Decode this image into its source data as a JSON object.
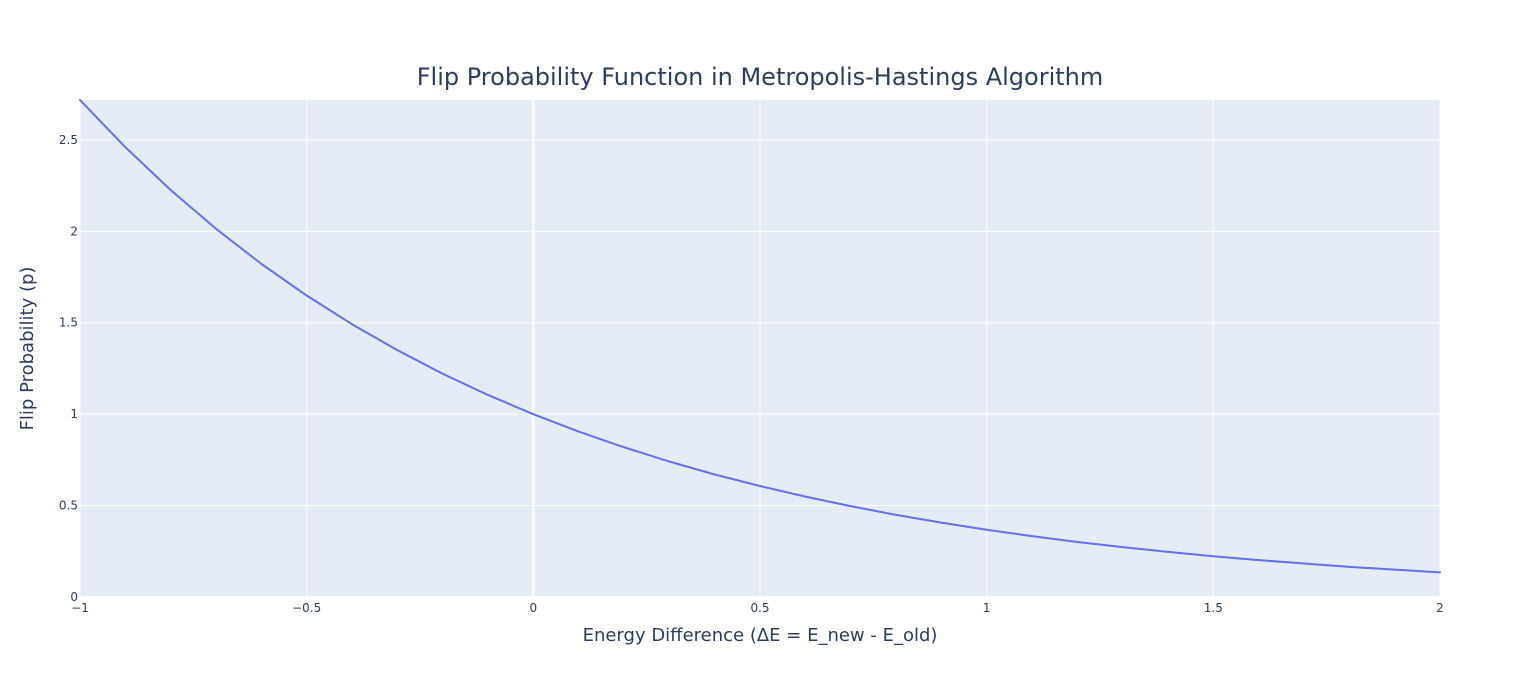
{
  "chart_data": {
    "type": "line",
    "title": "Flip Probability Function in Metropolis-Hastings Algorithm",
    "xlabel": "Energy Difference (ΔE = E_new - E_old)",
    "ylabel": "Flip Probability (p)",
    "xlim": [
      -1,
      2
    ],
    "ylim": [
      0,
      2.7183
    ],
    "x_ticks": [
      -1,
      -0.5,
      0,
      0.5,
      1,
      1.5,
      2
    ],
    "x_tick_labels": [
      "−1",
      "−0.5",
      "0",
      "0.5",
      "1",
      "1.5",
      "2"
    ],
    "y_ticks": [
      0,
      0.5,
      1,
      1.5,
      2,
      2.5
    ],
    "y_tick_labels": [
      "0",
      "0.5",
      "1",
      "1.5",
      "2",
      "2.5"
    ],
    "grid": true,
    "legend": false,
    "colors": {
      "plot_background": "#e5ecf6",
      "grid": "#ffffff",
      "line": "#636efa",
      "text": "#2a3f5f"
    },
    "series": [
      {
        "x": [
          -1,
          -0.9,
          -0.8,
          -0.7,
          -0.6,
          -0.5,
          -0.4,
          -0.3,
          -0.2,
          -0.1,
          0,
          0.1,
          0.2,
          0.3,
          0.4,
          0.5,
          0.6,
          0.7,
          0.8,
          0.9,
          1,
          1.1,
          1.2,
          1.3,
          1.4,
          1.5,
          1.6,
          1.7,
          1.8,
          1.9,
          2
        ],
        "values": [
          2.718,
          2.46,
          2.226,
          2.014,
          1.822,
          1.649,
          1.492,
          1.35,
          1.221,
          1.105,
          1,
          0.905,
          0.819,
          0.741,
          0.67,
          0.607,
          0.549,
          0.497,
          0.449,
          0.407,
          0.368,
          0.333,
          0.301,
          0.273,
          0.247,
          0.223,
          0.202,
          0.183,
          0.165,
          0.15,
          0.135
        ]
      }
    ]
  }
}
